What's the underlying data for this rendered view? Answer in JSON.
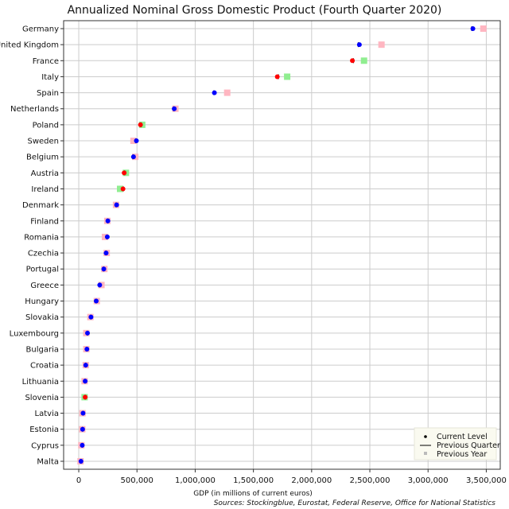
{
  "chart_data": {
    "type": "scatter",
    "title": "Annualized Nominal Gross Domestic Product (Fourth Quarter 2020)",
    "xlabel": "GDP (in millions of current euros)",
    "source": "Sources: Stockingblue, Eurostat, Federal Reserve, Office for National Statistics",
    "xlim": [
      -130000,
      3620000
    ],
    "xticks": [
      0,
      500000,
      1000000,
      1500000,
      2000000,
      2500000,
      3000000,
      3500000
    ],
    "xtick_labels": [
      "0",
      "500,000",
      "1,000,000",
      "1,500,000",
      "2,000,000",
      "2,500,000",
      "3,000,000",
      "3,500,000"
    ],
    "grid": true,
    "legend_position": "bottom-right",
    "legend": [
      "Current Level",
      "Previous Quarter",
      "Previous Year"
    ],
    "colors": {
      "increase": "#0000ff",
      "decrease": "#ff0000",
      "quarter_line": "#000000",
      "year_up": "#ffb6c1",
      "year_down": "#90ee90",
      "grid": "#cccccc"
    },
    "categories": [
      "Germany",
      "United Kingdom",
      "France",
      "Italy",
      "Spain",
      "Netherlands",
      "Poland",
      "Sweden",
      "Belgium",
      "Austria",
      "Ireland",
      "Denmark",
      "Finland",
      "Romania",
      "Czechia",
      "Portugal",
      "Greece",
      "Hungary",
      "Slovakia",
      "Luxembourg",
      "Bulgaria",
      "Croatia",
      "Lithuania",
      "Slovenia",
      "Latvia",
      "Estonia",
      "Cyprus",
      "Malta"
    ],
    "series": [
      {
        "name": "Current Level",
        "values": [
          3385000,
          2410000,
          2350000,
          1705000,
          1165000,
          820000,
          530000,
          495000,
          470000,
          390000,
          380000,
          325000,
          250000,
          245000,
          235000,
          215000,
          180000,
          150000,
          105000,
          75000,
          70000,
          60000,
          55000,
          55000,
          37000,
          33000,
          30000,
          19000
        ]
      },
      {
        "name": "Previous Quarter",
        "values": [
          3375000,
          2400000,
          2360000,
          1715000,
          1160000,
          815000,
          535000,
          490000,
          465000,
          395000,
          385000,
          320000,
          248000,
          240000,
          232000,
          212000,
          178000,
          148000,
          103000,
          73000,
          68000,
          58000,
          54000,
          56000,
          36000,
          32000,
          29000,
          18000
        ]
      },
      {
        "name": "Previous Year",
        "values": [
          3475000,
          2600000,
          2450000,
          1790000,
          1275000,
          830000,
          545000,
          470000,
          485000,
          405000,
          355000,
          320000,
          245000,
          225000,
          240000,
          220000,
          195000,
          155000,
          100000,
          65000,
          65000,
          60000,
          50000,
          50000,
          32000,
          30000,
          22000,
          15000
        ]
      }
    ],
    "direction": [
      "up",
      "up",
      "down",
      "down",
      "up",
      "up",
      "down",
      "up",
      "up",
      "down",
      "down",
      "up",
      "up",
      "up",
      "up",
      "up",
      "up",
      "up",
      "up",
      "up",
      "up",
      "up",
      "up",
      "down",
      "up",
      "up",
      "up",
      "up"
    ]
  }
}
